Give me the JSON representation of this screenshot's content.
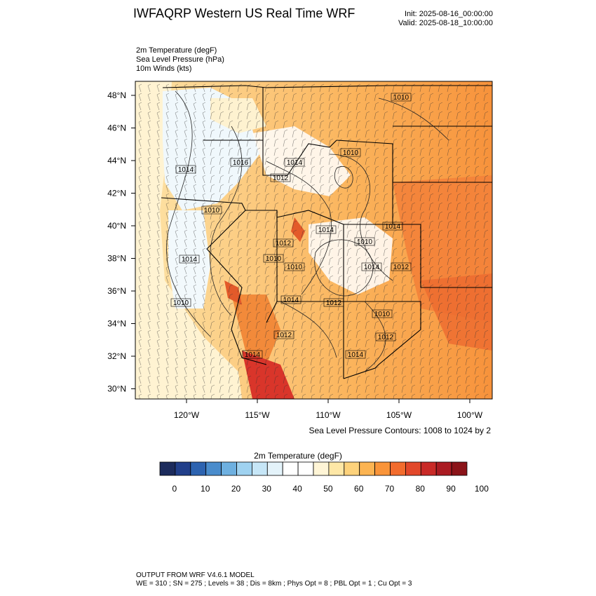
{
  "header": {
    "title": "IWFAQRP Western US Real Time WRF",
    "init": "Init: 2025-08-16_00:00:00",
    "valid": "Valid: 2025-08-18_10:00:00"
  },
  "fields": [
    {
      "label": "2m Temperature   (degF)"
    },
    {
      "label": "Sea Level Pressure   (hPa)"
    },
    {
      "label": "10m Winds   (kts)"
    }
  ],
  "map": {
    "lat_ticks": [
      "48°N",
      "46°N",
      "44°N",
      "42°N",
      "40°N",
      "38°N",
      "36°N",
      "34°N",
      "32°N",
      "30°N"
    ],
    "lon_ticks": [
      "120°W",
      "115°W",
      "110°W",
      "105°W",
      "100°W"
    ],
    "pressure_labels": [
      "1010",
      "1010",
      "1014",
      "1016",
      "1014",
      "1012",
      "1010",
      "1014",
      "1010",
      "1012",
      "1010",
      "1014",
      "1014",
      "1012",
      "1010",
      "1010",
      "1014",
      "1012",
      "1010",
      "1012",
      "1012",
      "1014",
      "1014",
      "1014"
    ],
    "contour_note": "Sea Level Pressure Contours: 1008 to 1024 by 2"
  },
  "colorbar": {
    "title": "2m Temperature  (degF)",
    "colors": [
      "#1c2b5c",
      "#213f8a",
      "#2d63b0",
      "#4a8ccc",
      "#6eb0e0",
      "#9fd2f0",
      "#c6e6f7",
      "#e4f3fa",
      "#ffffff",
      "#ffffff",
      "#fff5d6",
      "#fee7a6",
      "#fdd27b",
      "#fcb452",
      "#f99439",
      "#f26c2d",
      "#e2482a",
      "#c92a27",
      "#aa1b22",
      "#8b1419"
    ],
    "tick_labels": [
      "0",
      "10",
      "20",
      "30",
      "40",
      "50",
      "60",
      "70",
      "80",
      "90",
      "100"
    ]
  },
  "footer": {
    "line1": "OUTPUT FROM WRF V4.6.1 MODEL",
    "line2": "WE = 310 ; SN = 275 ; Levels = 38 ; Dis = 8km ; Phys Opt = 8 ; PBL Opt = 1 ; Cu Opt = 3"
  }
}
